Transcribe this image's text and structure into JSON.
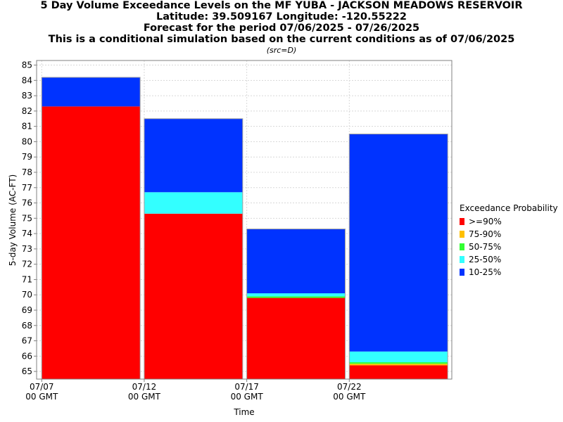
{
  "header": {
    "title_lines": [
      "5 Day Volume Exceedance Levels on the MF YUBA - JACKSON MEADOWS RESERVOIR",
      "Latitude: 39.509167 Longitude: -120.55222",
      "Forecast for the period 07/06/2025 - 07/26/2025",
      "This is a conditional simulation based on the current conditions as of 07/06/2025"
    ],
    "subtitle": "(src=D)"
  },
  "chart_data": {
    "type": "bar",
    "stacked": true,
    "xlabel": "Time",
    "ylabel": "5-day Volume (AC-FT)",
    "ylim": [
      64.5,
      85.3
    ],
    "yticks": [
      65,
      66,
      67,
      68,
      69,
      70,
      71,
      72,
      73,
      74,
      75,
      76,
      77,
      78,
      79,
      80,
      81,
      82,
      83,
      84,
      85
    ],
    "grid": true,
    "xticks": [
      {
        "day": 0,
        "label": "07/07",
        "label2": "00 GMT"
      },
      {
        "day": 5,
        "label": "07/12",
        "label2": "00 GMT"
      },
      {
        "day": 10,
        "label": "07/17",
        "label2": "00 GMT"
      },
      {
        "day": 15,
        "label": "07/22",
        "label2": "00 GMT"
      }
    ],
    "xlim_days": [
      -0.25,
      20.0
    ],
    "bars": [
      {
        "start_day": 0,
        "end_day": 4.8,
        "levels": {
          ">=90%": 82.3,
          "75-90%": 82.3,
          "50-75%": 82.3,
          "25-50%": 82.3,
          "10-25%": 84.2
        }
      },
      {
        "start_day": 5,
        "end_day": 9.8,
        "levels": {
          ">=90%": 75.3,
          "75-90%": 75.3,
          "50-75%": 75.3,
          "25-50%": 76.7,
          "10-25%": 81.5
        }
      },
      {
        "start_day": 10,
        "end_day": 14.8,
        "levels": {
          ">=90%": 69.8,
          "75-90%": 69.8,
          "50-75%": 69.9,
          "25-50%": 70.1,
          "10-25%": 74.3
        }
      },
      {
        "start_day": 15,
        "end_day": 19.8,
        "levels": {
          ">=90%": 65.4,
          "75-90%": 65.5,
          "50-75%": 65.6,
          "25-50%": 66.3,
          "10-25%": 80.5
        }
      }
    ],
    "legend": {
      "title": "Exceedance Probability",
      "position": "right",
      "items": [
        {
          "label": ">=90%",
          "color": "#ff0000"
        },
        {
          "label": "75-90%",
          "color": "#ffc000"
        },
        {
          "label": "50-75%",
          "color": "#33ff33"
        },
        {
          "label": "25-50%",
          "color": "#33ffff"
        },
        {
          "label": "10-25%",
          "color": "#0033ff"
        }
      ]
    }
  }
}
